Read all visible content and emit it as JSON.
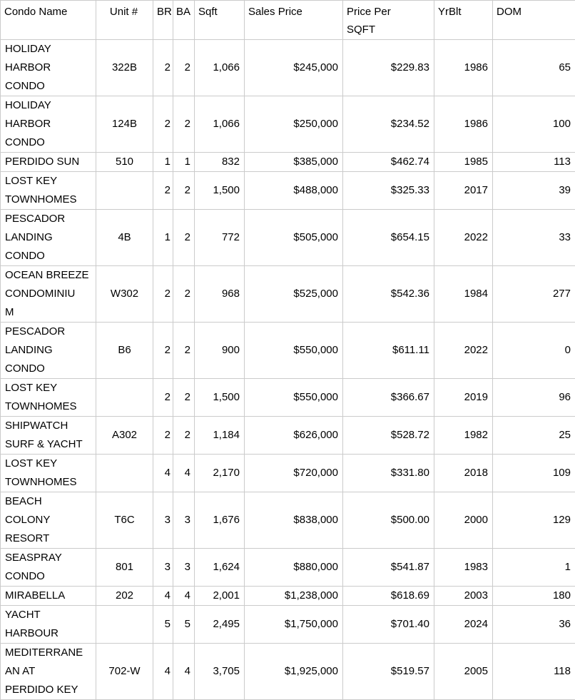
{
  "table": {
    "columns": [
      {
        "key": "name",
        "label": "Condo Name"
      },
      {
        "key": "unit",
        "label": "Unit #"
      },
      {
        "key": "br",
        "label": "BR"
      },
      {
        "key": "ba",
        "label": "BA"
      },
      {
        "key": "sqft",
        "label": "Sqft"
      },
      {
        "key": "sales_price",
        "label": "Sales Price"
      },
      {
        "key": "price_per_sqft",
        "label": "Price Per\nSQFT"
      },
      {
        "key": "yrblt",
        "label": "YrBlt"
      },
      {
        "key": "dom",
        "label": "DOM"
      }
    ],
    "rows": [
      {
        "name": "HOLIDAY\nHARBOR\nCONDO",
        "unit": "322B",
        "br": "2",
        "ba": "2",
        "sqft": "1,066",
        "sales_price": "$245,000",
        "price_per_sqft": "$229.83",
        "yrblt": "1986",
        "dom": "65"
      },
      {
        "name": "HOLIDAY\nHARBOR\nCONDO",
        "unit": "124B",
        "br": "2",
        "ba": "2",
        "sqft": "1,066",
        "sales_price": "$250,000",
        "price_per_sqft": "$234.52",
        "yrblt": "1986",
        "dom": "100"
      },
      {
        "name": "PERDIDO SUN",
        "unit": "510",
        "br": "1",
        "ba": "1",
        "sqft": "832",
        "sales_price": "$385,000",
        "price_per_sqft": "$462.74",
        "yrblt": "1985",
        "dom": "113"
      },
      {
        "name": "LOST KEY\nTOWNHOMES",
        "unit": "",
        "br": "2",
        "ba": "2",
        "sqft": "1,500",
        "sales_price": "$488,000",
        "price_per_sqft": "$325.33",
        "yrblt": "2017",
        "dom": "39"
      },
      {
        "name": "PESCADOR\nLANDING\nCONDO",
        "unit": "4B",
        "br": "1",
        "ba": "2",
        "sqft": "772",
        "sales_price": "$505,000",
        "price_per_sqft": "$654.15",
        "yrblt": "2022",
        "dom": "33"
      },
      {
        "name": "OCEAN BREEZE\nCONDOMINIU\nM",
        "unit": "W302",
        "br": "2",
        "ba": "2",
        "sqft": "968",
        "sales_price": "$525,000",
        "price_per_sqft": "$542.36",
        "yrblt": "1984",
        "dom": "277"
      },
      {
        "name": "PESCADOR\nLANDING\nCONDO",
        "unit": "B6",
        "br": "2",
        "ba": "2",
        "sqft": "900",
        "sales_price": "$550,000",
        "price_per_sqft": "$611.11",
        "yrblt": "2022",
        "dom": "0"
      },
      {
        "name": "LOST KEY\nTOWNHOMES",
        "unit": "",
        "br": "2",
        "ba": "2",
        "sqft": "1,500",
        "sales_price": "$550,000",
        "price_per_sqft": "$366.67",
        "yrblt": "2019",
        "dom": "96"
      },
      {
        "name": "SHIPWATCH\nSURF & YACHT",
        "unit": "A302",
        "br": "2",
        "ba": "2",
        "sqft": "1,184",
        "sales_price": "$626,000",
        "price_per_sqft": "$528.72",
        "yrblt": "1982",
        "dom": "25"
      },
      {
        "name": "LOST KEY\nTOWNHOMES",
        "unit": "",
        "br": "4",
        "ba": "4",
        "sqft": "2,170",
        "sales_price": "$720,000",
        "price_per_sqft": "$331.80",
        "yrblt": "2018",
        "dom": "109"
      },
      {
        "name": "BEACH\nCOLONY\nRESORT",
        "unit": "T6C",
        "br": "3",
        "ba": "3",
        "sqft": "1,676",
        "sales_price": "$838,000",
        "price_per_sqft": "$500.00",
        "yrblt": "2000",
        "dom": "129"
      },
      {
        "name": "SEASPRAY\nCONDO",
        "unit": "801",
        "br": "3",
        "ba": "3",
        "sqft": "1,624",
        "sales_price": "$880,000",
        "price_per_sqft": "$541.87",
        "yrblt": "1983",
        "dom": "1"
      },
      {
        "name": "MIRABELLA",
        "unit": "202",
        "br": "4",
        "ba": "4",
        "sqft": "2,001",
        "sales_price": "$1,238,000",
        "price_per_sqft": "$618.69",
        "yrblt": "2003",
        "dom": "180"
      },
      {
        "name": "YACHT\nHARBOUR",
        "unit": "",
        "br": "5",
        "ba": "5",
        "sqft": "2,495",
        "sales_price": "$1,750,000",
        "price_per_sqft": "$701.40",
        "yrblt": "2024",
        "dom": "36"
      },
      {
        "name": "MEDITERRANE\nAN AT\nPERDIDO KEY",
        "unit": "702-W",
        "br": "4",
        "ba": "4",
        "sqft": "3,705",
        "sales_price": "$1,925,000",
        "price_per_sqft": "$519.57",
        "yrblt": "2005",
        "dom": "118"
      }
    ]
  },
  "colors": {
    "grid": "#cbcbcb",
    "text": "#000000",
    "background": "#ffffff"
  }
}
